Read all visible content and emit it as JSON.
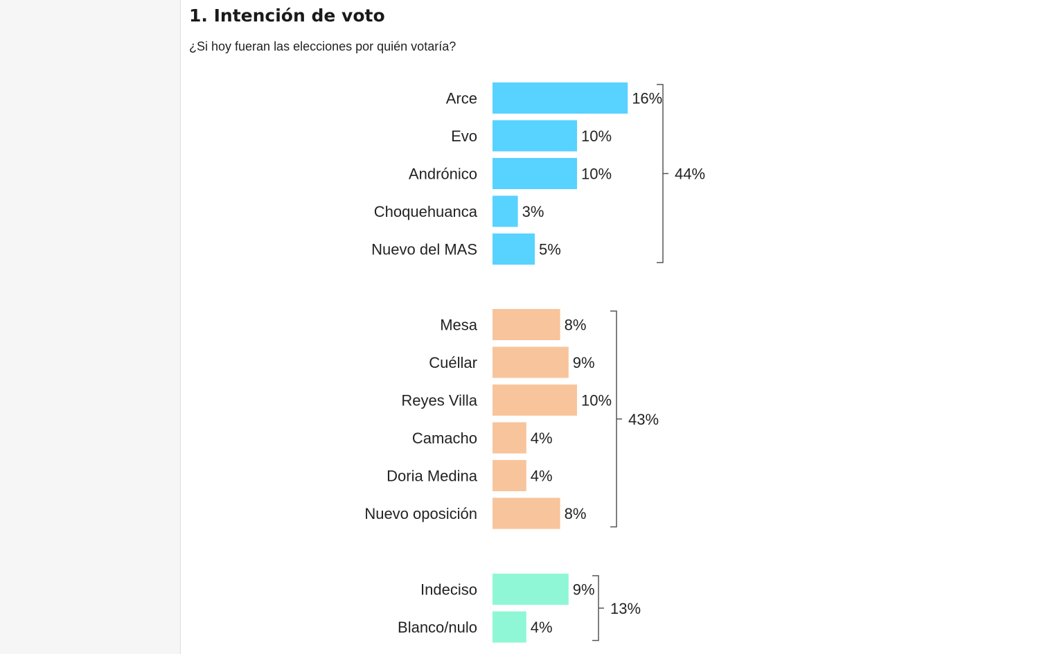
{
  "header": {
    "title": "1. Intención de voto",
    "question": "¿Si hoy fueran las elecciones por quién votaría?"
  },
  "colors": {
    "mas": "#58d2ff",
    "opposition": "#f8c49c",
    "other": "#8ff7d6",
    "bracket": "#555555"
  },
  "chart_data": {
    "type": "bar",
    "orientation": "horizontal",
    "unit": "%",
    "groups": [
      {
        "color_key": "mas",
        "total_label": "44%",
        "categories": [
          "Arce",
          "Evo",
          "Andrónico",
          "Choquehuanca",
          "Nuevo del MAS"
        ],
        "values": [
          16,
          10,
          10,
          3,
          5
        ],
        "value_labels": [
          "16%",
          "10%",
          "10%",
          "3%",
          "5%"
        ]
      },
      {
        "color_key": "opposition",
        "total_label": "43%",
        "categories": [
          "Mesa",
          "Cuéllar",
          "Reyes Villa",
          "Camacho",
          "Doria Medina",
          "Nuevo oposición"
        ],
        "values": [
          8,
          9,
          10,
          4,
          4,
          8
        ],
        "value_labels": [
          "8%",
          "9%",
          "10%",
          "4%",
          "4%",
          "8%"
        ]
      },
      {
        "color_key": "other",
        "total_label": "13%",
        "categories": [
          "Indeciso",
          "Blanco/nulo"
        ],
        "values": [
          9,
          4
        ],
        "value_labels": [
          "9%",
          "4%"
        ]
      }
    ]
  }
}
